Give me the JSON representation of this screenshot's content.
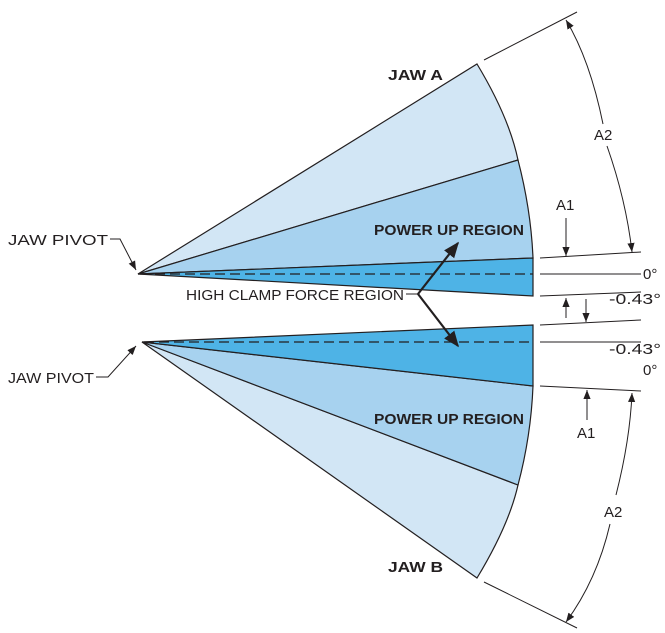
{
  "colors": {
    "outer_region": "#d2e6f5",
    "power_up_region": "#a7d2ef",
    "clamp_region": "#4eb3e6",
    "line": "#231f20"
  },
  "jaw_a": {
    "name": "JAW A",
    "pivot_label": "JAW PIVOT",
    "power_up_label": "POWER UP REGION",
    "zero_label": "0°",
    "offset_label": "-0.43°",
    "a1_label": "A1",
    "a2_label": "A2"
  },
  "jaw_b": {
    "name": "JAW B",
    "pivot_label": "JAW PIVOT",
    "power_up_label": "POWER UP REGION",
    "zero_label": "0°",
    "offset_label": "-0.43°",
    "a1_label": "A1",
    "a2_label": "A2"
  },
  "high_clamp_label": "HIGH CLAMP FORCE REGION"
}
